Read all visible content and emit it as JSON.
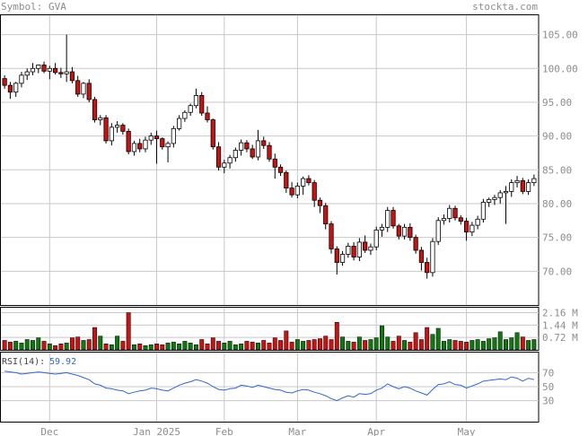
{
  "header": {
    "symbol_label": "Symbol: GVA",
    "site": "stockta.com"
  },
  "colors": {
    "up": "#ffffff",
    "down": "#cc1111",
    "vol_up": "#117711",
    "vol_down": "#cc1111",
    "grid": "#c8c8c8",
    "rsi_line": "#3366cc",
    "axis_text": "#8c8c8c"
  },
  "price_axis": {
    "min": 65,
    "max": 108,
    "ticks": [
      "105.00",
      "100.00",
      "95.00",
      "90.00",
      "85.00",
      "80.00",
      "75.00",
      "70.00"
    ]
  },
  "volume_axis": {
    "max": 2.5,
    "ticks": [
      "2.16 M",
      "1.44 M",
      "0.72 M"
    ]
  },
  "rsi_axis": {
    "ticks": [
      "70",
      "50",
      "30"
    ]
  },
  "rsi_label": {
    "title": "RSI(14):",
    "value": "59.92"
  },
  "x_labels": [
    {
      "label": "Dec",
      "index": 8
    },
    {
      "label": "Jan 2025",
      "index": 27
    },
    {
      "label": "Feb",
      "index": 39
    },
    {
      "label": "Mar",
      "index": 52
    },
    {
      "label": "Apr",
      "index": 66
    },
    {
      "label": "May",
      "index": 82
    }
  ],
  "chart_data": {
    "type": "candlestick",
    "ohlc": [
      [
        98.5,
        99.0,
        97.0,
        97.5
      ],
      [
        97.5,
        98.0,
        95.5,
        96.5
      ],
      [
        96.5,
        98.0,
        95.8,
        97.8
      ],
      [
        97.8,
        99.5,
        97.2,
        99.0
      ],
      [
        99.0,
        100.0,
        98.3,
        99.5
      ],
      [
        99.5,
        100.8,
        99.0,
        100.0
      ],
      [
        100.0,
        100.6,
        99.3,
        100.5
      ],
      [
        100.5,
        101.0,
        99.3,
        99.6
      ],
      [
        99.6,
        100.4,
        98.4,
        100.0
      ],
      [
        100.0,
        100.8,
        99.1,
        99.4
      ],
      [
        99.4,
        100.1,
        98.6,
        99.2
      ],
      [
        99.2,
        105.0,
        98.0,
        99.5
      ],
      [
        99.5,
        100.2,
        97.8,
        98.2
      ],
      [
        98.2,
        98.9,
        95.8,
        96.2
      ],
      [
        96.2,
        98.0,
        95.6,
        97.8
      ],
      [
        97.8,
        98.4,
        95.0,
        95.4
      ],
      [
        95.4,
        95.8,
        92.0,
        92.4
      ],
      [
        92.4,
        93.1,
        91.6,
        92.7
      ],
      [
        92.7,
        93.1,
        88.9,
        89.3
      ],
      [
        89.3,
        91.9,
        88.6,
        91.3
      ],
      [
        91.3,
        92.2,
        90.5,
        91.6
      ],
      [
        91.6,
        91.9,
        90.2,
        90.7
      ],
      [
        90.7,
        91.1,
        87.3,
        87.7
      ],
      [
        87.7,
        89.3,
        87.1,
        88.9
      ],
      [
        88.9,
        89.6,
        87.6,
        88.1
      ],
      [
        88.1,
        89.9,
        87.6,
        89.4
      ],
      [
        89.4,
        90.5,
        88.7,
        90.0
      ],
      [
        90.0,
        90.8,
        85.9,
        89.6
      ],
      [
        89.6,
        89.8,
        88.0,
        88.4
      ],
      [
        88.4,
        89.2,
        86.1,
        88.9
      ],
      [
        88.9,
        91.5,
        88.3,
        91.1
      ],
      [
        91.1,
        93.1,
        90.8,
        92.6
      ],
      [
        92.6,
        93.8,
        92.1,
        93.5
      ],
      [
        93.5,
        94.8,
        93.0,
        94.5
      ],
      [
        94.5,
        97.0,
        94.1,
        96.0
      ],
      [
        96.0,
        96.5,
        93.0,
        93.4
      ],
      [
        93.4,
        94.4,
        92.0,
        92.4
      ],
      [
        92.4,
        92.6,
        88.0,
        88.4
      ],
      [
        88.4,
        89.1,
        84.9,
        85.4
      ],
      [
        85.4,
        86.5,
        84.5,
        86.0
      ],
      [
        86.0,
        87.2,
        85.2,
        86.8
      ],
      [
        86.8,
        88.3,
        86.2,
        87.9
      ],
      [
        87.9,
        89.5,
        87.1,
        89.0
      ],
      [
        89.0,
        89.4,
        87.6,
        88.1
      ],
      [
        88.1,
        88.7,
        86.6,
        86.9
      ],
      [
        86.9,
        90.9,
        86.4,
        89.3
      ],
      [
        89.3,
        89.9,
        88.1,
        88.6
      ],
      [
        88.6,
        89.1,
        86.2,
        86.6
      ],
      [
        86.6,
        87.4,
        83.7,
        85.4
      ],
      [
        85.4,
        85.8,
        84.1,
        84.6
      ],
      [
        84.6,
        84.9,
        81.6,
        82.3
      ],
      [
        82.3,
        83.2,
        80.9,
        81.3
      ],
      [
        81.3,
        83.1,
        80.8,
        82.6
      ],
      [
        82.6,
        84.0,
        81.3,
        83.7
      ],
      [
        83.7,
        84.2,
        82.7,
        83.1
      ],
      [
        83.1,
        83.5,
        79.5,
        80.5
      ],
      [
        80.5,
        80.9,
        78.6,
        79.7
      ],
      [
        79.7,
        80.1,
        76.2,
        77.0
      ],
      [
        77.0,
        77.4,
        72.6,
        73.3
      ],
      [
        73.3,
        73.7,
        69.5,
        71.3
      ],
      [
        71.3,
        73.0,
        70.8,
        72.5
      ],
      [
        72.5,
        74.2,
        72.0,
        73.7
      ],
      [
        73.7,
        74.3,
        71.6,
        72.1
      ],
      [
        72.1,
        74.9,
        71.5,
        74.3
      ],
      [
        74.3,
        75.3,
        72.7,
        73.1
      ],
      [
        73.1,
        74.1,
        72.4,
        73.6
      ],
      [
        73.6,
        76.6,
        73.1,
        76.1
      ],
      [
        76.1,
        77.0,
        75.1,
        76.5
      ],
      [
        76.5,
        79.5,
        75.8,
        79.0
      ],
      [
        79.0,
        79.5,
        76.3,
        76.7
      ],
      [
        76.7,
        77.0,
        74.7,
        75.2
      ],
      [
        75.2,
        77.0,
        74.7,
        76.5
      ],
      [
        76.5,
        77.1,
        74.5,
        75.0
      ],
      [
        75.0,
        75.4,
        72.6,
        73.1
      ],
      [
        73.1,
        73.6,
        70.1,
        71.3
      ],
      [
        71.3,
        72.0,
        68.9,
        69.8
      ],
      [
        69.8,
        74.9,
        69.2,
        74.4
      ],
      [
        74.4,
        78.0,
        73.9,
        77.5
      ],
      [
        77.5,
        78.4,
        76.9,
        77.8
      ],
      [
        77.8,
        79.8,
        77.2,
        79.3
      ],
      [
        79.3,
        79.7,
        77.5,
        77.9
      ],
      [
        77.9,
        78.3,
        76.9,
        77.4
      ],
      [
        77.4,
        77.9,
        74.5,
        75.8
      ],
      [
        75.8,
        77.3,
        75.2,
        76.8
      ],
      [
        76.8,
        78.2,
        76.2,
        77.7
      ],
      [
        77.7,
        80.7,
        77.2,
        80.2
      ],
      [
        80.2,
        80.9,
        79.5,
        80.6
      ],
      [
        80.6,
        81.3,
        79.8,
        80.9
      ],
      [
        80.9,
        82.0,
        80.0,
        81.6
      ],
      [
        81.6,
        82.6,
        77.0,
        81.8
      ],
      [
        81.8,
        83.6,
        81.0,
        83.1
      ],
      [
        83.1,
        84.1,
        82.4,
        83.4
      ],
      [
        83.4,
        83.8,
        81.4,
        81.8
      ],
      [
        81.8,
        83.6,
        81.3,
        83.1
      ],
      [
        83.1,
        84.3,
        82.6,
        83.7
      ]
    ],
    "volume_m": [
      0.55,
      0.45,
      0.5,
      0.4,
      0.6,
      0.55,
      0.7,
      0.5,
      0.35,
      0.25,
      0.35,
      0.4,
      0.7,
      0.75,
      0.55,
      0.6,
      1.3,
      0.8,
      0.35,
      0.3,
      0.8,
      0.5,
      2.16,
      0.3,
      0.35,
      0.25,
      0.3,
      0.35,
      0.3,
      0.4,
      0.45,
      0.35,
      0.5,
      0.4,
      0.3,
      0.6,
      0.35,
      0.7,
      0.5,
      0.4,
      0.5,
      0.3,
      0.35,
      0.5,
      0.45,
      0.4,
      0.55,
      0.4,
      0.7,
      0.55,
      1.1,
      0.45,
      0.6,
      0.5,
      0.55,
      0.6,
      0.65,
      0.8,
      0.6,
      1.6,
      0.75,
      0.5,
      0.45,
      0.75,
      0.55,
      0.6,
      0.7,
      1.4,
      0.75,
      0.5,
      0.8,
      0.55,
      0.45,
      1.0,
      0.6,
      1.3,
      0.9,
      1.25,
      0.5,
      0.6,
      0.55,
      0.5,
      0.45,
      0.55,
      0.6,
      0.5,
      0.65,
      0.7,
      1.05,
      0.6,
      0.7,
      1.0,
      0.75,
      0.55,
      0.6
    ],
    "rsi": [
      72,
      71,
      70,
      68,
      69,
      70,
      71,
      70,
      69,
      68,
      69,
      70,
      68,
      66,
      63,
      60,
      54,
      52,
      48,
      47,
      45,
      44,
      40,
      42,
      44,
      45,
      48,
      47,
      45,
      44,
      48,
      52,
      55,
      57,
      60,
      58,
      55,
      50,
      46,
      45,
      47,
      48,
      52,
      51,
      49,
      52,
      50,
      48,
      46,
      45,
      42,
      41,
      44,
      46,
      45,
      42,
      40,
      37,
      33,
      30,
      34,
      37,
      35,
      40,
      39,
      40,
      45,
      48,
      54,
      50,
      47,
      50,
      48,
      44,
      41,
      38,
      46,
      53,
      54,
      57,
      53,
      52,
      48,
      51,
      54,
      58,
      59,
      60,
      61,
      60,
      64,
      62,
      58,
      62,
      60
    ]
  }
}
